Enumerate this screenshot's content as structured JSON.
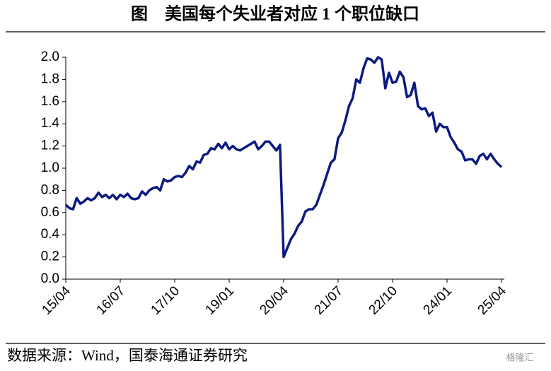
{
  "chart_data": {
    "type": "line",
    "title": "图　美国每个失业者对应 1 个职位缺口",
    "source": "数据来源：Wind，国泰海通证券研究",
    "watermark": "格隆汇",
    "categories": [
      "15/04",
      null,
      null,
      null,
      null,
      null,
      null,
      null,
      null,
      null,
      null,
      null,
      null,
      null,
      null,
      "16/07",
      null,
      null,
      null,
      null,
      null,
      null,
      null,
      null,
      null,
      null,
      null,
      null,
      null,
      null,
      "17/10",
      null,
      null,
      null,
      null,
      null,
      null,
      null,
      null,
      null,
      null,
      null,
      null,
      null,
      null,
      "19/01",
      null,
      null,
      null,
      null,
      null,
      null,
      null,
      null,
      null,
      null,
      null,
      null,
      null,
      null,
      "20/04",
      null,
      null,
      null,
      null,
      null,
      null,
      null,
      null,
      null,
      null,
      null,
      null,
      null,
      null,
      "21/07",
      null,
      null,
      null,
      null,
      null,
      null,
      null,
      null,
      null,
      null,
      null,
      null,
      null,
      null,
      "22/10",
      null,
      null,
      null,
      null,
      null,
      null,
      null,
      null,
      null,
      null,
      null,
      null,
      null,
      null,
      "24/01",
      null,
      null,
      null,
      null,
      null,
      null,
      null,
      null,
      null,
      null,
      null,
      null,
      null,
      null,
      "25/04"
    ],
    "values": [
      0.67,
      0.64,
      0.63,
      0.73,
      0.68,
      0.7,
      0.73,
      0.71,
      0.73,
      0.78,
      0.74,
      0.76,
      0.73,
      0.76,
      0.72,
      0.76,
      0.74,
      0.77,
      0.73,
      0.72,
      0.73,
      0.79,
      0.76,
      0.8,
      0.82,
      0.83,
      0.8,
      0.9,
      0.88,
      0.89,
      0.92,
      0.93,
      0.92,
      0.96,
      1.02,
      0.99,
      1.06,
      1.05,
      1.12,
      1.13,
      1.18,
      1.17,
      1.22,
      1.18,
      1.23,
      1.17,
      1.2,
      1.17,
      1.16,
      1.18,
      1.2,
      1.22,
      1.24,
      1.17,
      1.2,
      1.24,
      1.24,
      1.2,
      1.16,
      1.21,
      0.2,
      0.28,
      0.36,
      0.41,
      0.48,
      0.52,
      0.61,
      0.63,
      0.63,
      0.67,
      0.76,
      0.85,
      0.95,
      1.05,
      1.08,
      1.27,
      1.32,
      1.43,
      1.56,
      1.63,
      1.8,
      1.77,
      1.9,
      1.99,
      1.98,
      1.95,
      2.0,
      1.98,
      1.72,
      1.86,
      1.77,
      1.78,
      1.87,
      1.82,
      1.64,
      1.66,
      1.77,
      1.56,
      1.53,
      1.54,
      1.47,
      1.5,
      1.33,
      1.4,
      1.37,
      1.37,
      1.28,
      1.23,
      1.17,
      1.15,
      1.07,
      1.08,
      1.08,
      1.04,
      1.11,
      1.13,
      1.08,
      1.13,
      1.08,
      1.04,
      1.01
    ],
    "color": "#0c1a80",
    "ylim": [
      0,
      2
    ],
    "yticks": [
      {
        "value": 0,
        "label": "0.0"
      },
      0.2,
      0.4,
      0.6,
      0.8,
      {
        "value": 1,
        "label": "1.0"
      },
      1.2,
      1.4,
      1.6,
      1.8,
      {
        "value": 2,
        "label": "2.0"
      }
    ],
    "grid": false
  }
}
